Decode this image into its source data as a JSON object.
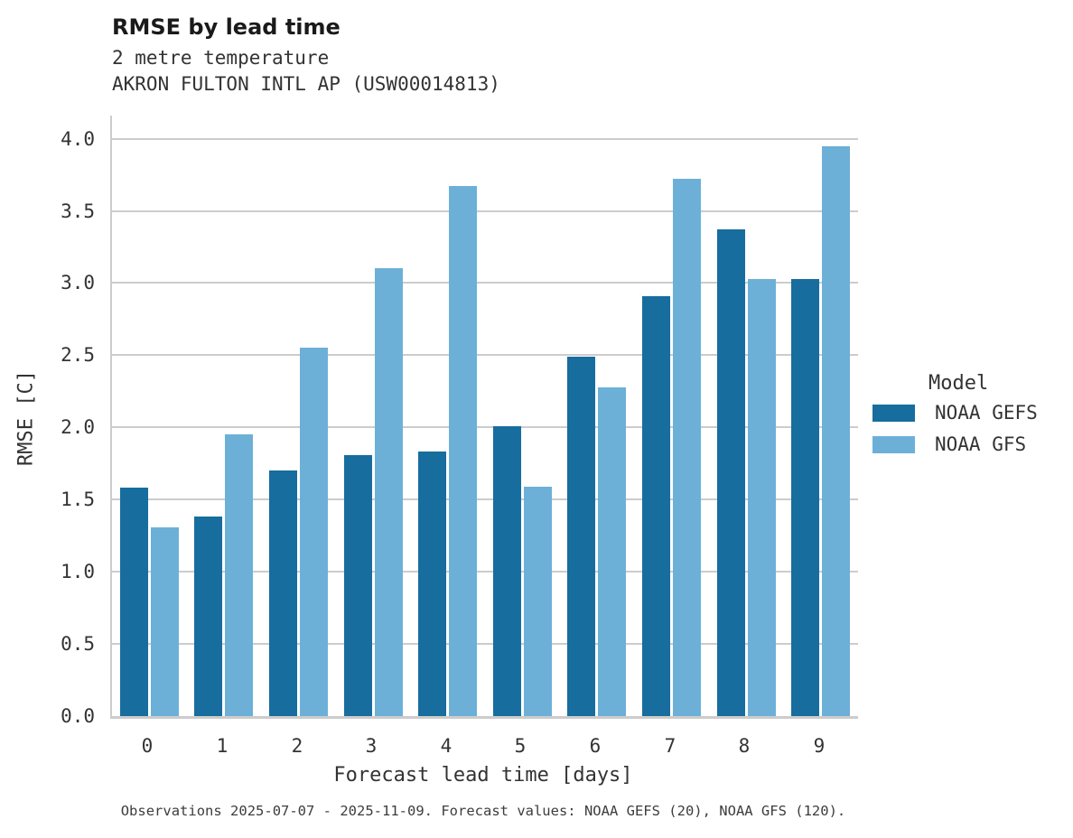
{
  "header": {
    "title": "RMSE by lead time",
    "subtitle_line1": "2 metre temperature",
    "subtitle_line2": "AKRON FULTON INTL AP (USW00014813)"
  },
  "axes": {
    "xlabel": "Forecast lead time [days]",
    "ylabel": "RMSE [C]"
  },
  "legend": {
    "title": "Model",
    "entries": [
      {
        "label": "NOAA GEFS",
        "color": "#176D9E"
      },
      {
        "label": "NOAA GFS",
        "color": "#6CB0D8"
      }
    ]
  },
  "footnote": "Observations 2025-07-07 - 2025-11-09. Forecast values: NOAA GEFS (20), NOAA GFS (120).",
  "colors": {
    "gefs_bar": "#176D9E",
    "gfs_bar": "#6CB0D8",
    "gridline": "#cccccc",
    "text": "#333333"
  },
  "chart_data": {
    "type": "bar",
    "title": "RMSE by lead time",
    "subtitle": [
      "2 metre temperature",
      "AKRON FULTON INTL AP (USW00014813)"
    ],
    "xlabel": "Forecast lead time [days]",
    "ylabel": "RMSE [C]",
    "categories": [
      "0",
      "1",
      "2",
      "3",
      "4",
      "5",
      "6",
      "7",
      "8",
      "9"
    ],
    "series": [
      {
        "name": "NOAA GEFS",
        "color": "#176D9E",
        "values": [
          1.58,
          1.38,
          1.7,
          1.81,
          1.83,
          2.01,
          2.49,
          2.91,
          3.37,
          3.03
        ]
      },
      {
        "name": "NOAA GFS",
        "color": "#6CB0D8",
        "values": [
          1.31,
          1.95,
          2.55,
          3.1,
          3.67,
          1.59,
          2.28,
          3.72,
          3.03,
          3.95
        ]
      }
    ],
    "ylim": [
      0.0,
      4.16
    ],
    "yticks": [
      0.0,
      0.5,
      1.0,
      1.5,
      2.0,
      2.5,
      3.0,
      3.5,
      4.0
    ],
    "grid": true,
    "legend_title": "Model",
    "legend_position": "center right",
    "caption": "Observations 2025-07-07 - 2025-11-09. Forecast values: NOAA GEFS (20), NOAA GFS (120)."
  }
}
